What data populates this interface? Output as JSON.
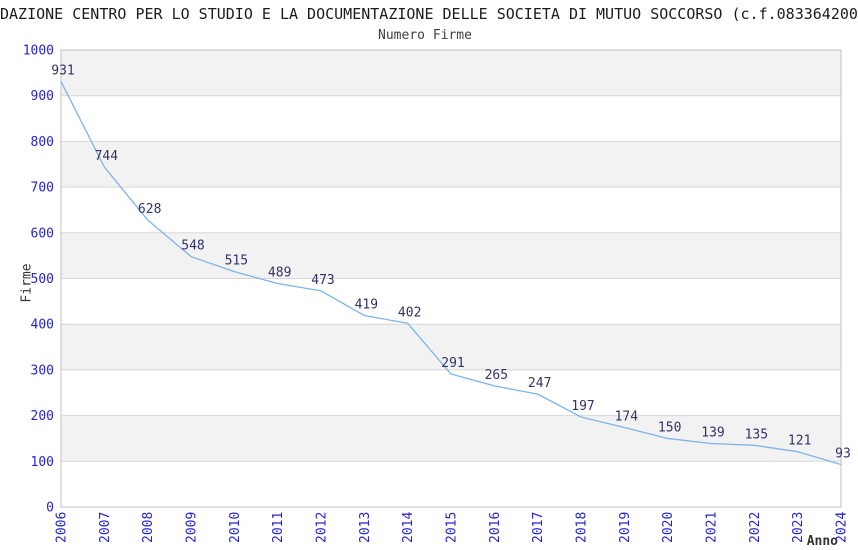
{
  "chart_data": {
    "type": "line",
    "title": "DAZIONE CENTRO PER LO STUDIO E LA DOCUMENTAZIONE DELLE SOCIETA DI MUTUO SOCCORSO (c.f.083364200",
    "subtitle": "Numero Firme",
    "xlabel": "Anno",
    "ylabel": "Firme",
    "categories": [
      2006,
      2007,
      2008,
      2009,
      2010,
      2011,
      2012,
      2013,
      2014,
      2015,
      2016,
      2017,
      2018,
      2019,
      2020,
      2021,
      2022,
      2023,
      2024
    ],
    "values": [
      931,
      744,
      628,
      548,
      515,
      489,
      473,
      419,
      402,
      291,
      265,
      247,
      197,
      174,
      150,
      139,
      135,
      121,
      93
    ],
    "ylim": [
      0,
      1000
    ],
    "ytick_step": 100,
    "grid": "horizontal-gridlines-with-alternating-bands",
    "legend_position": "none",
    "colors": {
      "line": "#7db4ea",
      "tick_label": "#2525cc",
      "data_label": "#333366",
      "band_fill": "#f2f2f2",
      "gridline": "#d8d8d8",
      "plot_border": "#c0c0c0",
      "title_text": "#1c1c1c",
      "subtitle_text": "#404040",
      "axis_title_text": "#333333",
      "background": "#ffffff"
    }
  }
}
